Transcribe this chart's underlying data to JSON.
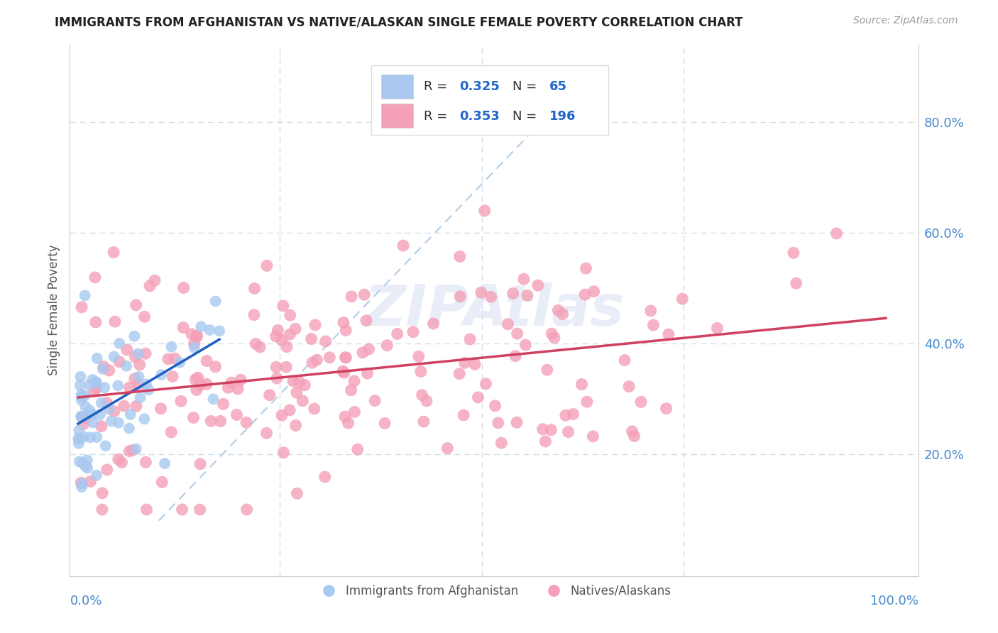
{
  "title": "IMMIGRANTS FROM AFGHANISTAN VS NATIVE/ALASKAN SINGLE FEMALE POVERTY CORRELATION CHART",
  "source": "Source: ZipAtlas.com",
  "ylabel": "Single Female Poverty",
  "y_ticks": [
    "20.0%",
    "40.0%",
    "60.0%",
    "80.0%"
  ],
  "y_tick_vals": [
    0.2,
    0.4,
    0.6,
    0.8
  ],
  "legend1_r": "0.325",
  "legend1_n": "65",
  "legend2_r": "0.353",
  "legend2_n": "196",
  "blue_color": "#a8c8f0",
  "pink_color": "#f4a0b8",
  "blue_line_color": "#2060c0",
  "pink_line_color": "#d04060",
  "dashed_line_color": "#b0cce8",
  "watermark": "ZIPAtlas",
  "background_color": "#ffffff",
  "grid_color": "#d4dce8",
  "title_color": "#222222",
  "source_color": "#999999",
  "axis_label_color": "#4488cc",
  "legend_r_color": "#2266cc",
  "n_blue": 65,
  "n_pink": 196
}
